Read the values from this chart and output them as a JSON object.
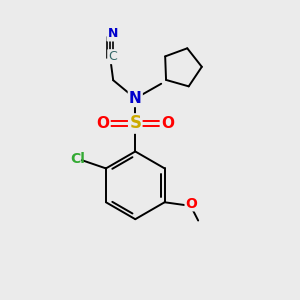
{
  "background_color": "#ebebeb",
  "atom_colors": {
    "C": "#000000",
    "N": "#0000cc",
    "O": "#ff0000",
    "S": "#ccaa00",
    "Cl": "#33aa33",
    "CN_label": "#336666"
  },
  "bond_lw": 1.4,
  "font_size": 10
}
